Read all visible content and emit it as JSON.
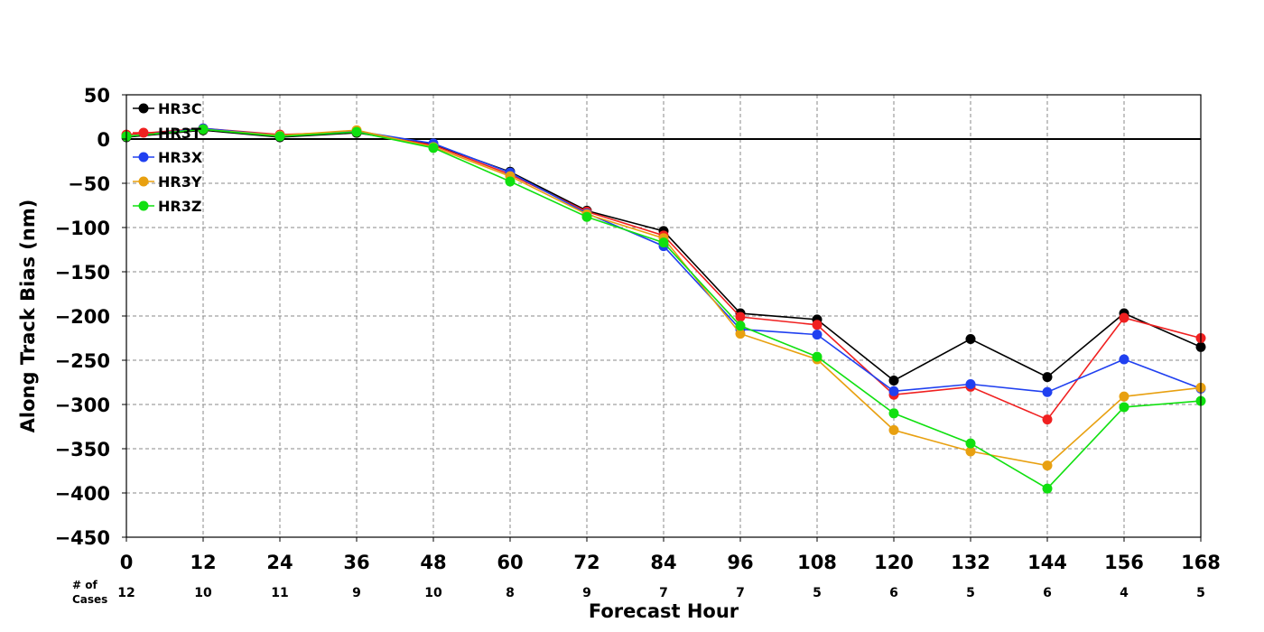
{
  "chart_data": {
    "type": "line",
    "xlabel": "Forecast Hour",
    "ylabel": "Along Track Bias (nm)",
    "x": [
      0,
      12,
      24,
      36,
      48,
      60,
      72,
      84,
      96,
      108,
      120,
      132,
      144,
      156,
      168
    ],
    "xticks": [
      0,
      12,
      24,
      36,
      48,
      60,
      72,
      84,
      96,
      108,
      120,
      132,
      144,
      156,
      168
    ],
    "xlim": [
      0,
      168
    ],
    "ylim": [
      -450,
      50
    ],
    "yticks": [
      50,
      0,
      -50,
      -100,
      -150,
      -200,
      -250,
      -300,
      -350,
      -400,
      -450
    ],
    "grid": true,
    "legend_position": "top-left",
    "cases_label": [
      "# of",
      "Cases"
    ],
    "cases": [
      12,
      10,
      11,
      9,
      10,
      8,
      9,
      7,
      7,
      5,
      6,
      5,
      6,
      4,
      5
    ],
    "series": [
      {
        "name": "HR3C",
        "color": "#000000",
        "values": [
          2,
          10,
          2,
          7,
          -6,
          -37,
          -81,
          -104,
          -197,
          -204,
          -273,
          -226,
          -269,
          -197,
          -235
        ]
      },
      {
        "name": "HR3T",
        "color": "#f02020",
        "values": [
          5,
          12,
          5,
          8,
          -7,
          -40,
          -82,
          -109,
          -201,
          -210,
          -289,
          -280,
          -317,
          -202,
          -225
        ]
      },
      {
        "name": "HR3X",
        "color": "#2040f0",
        "values": [
          3,
          12,
          4,
          9,
          -5,
          -38,
          -84,
          -121,
          -215,
          -221,
          -285,
          -277,
          -286,
          -249,
          -282
        ]
      },
      {
        "name": "HR3Y",
        "color": "#e8a010",
        "values": [
          3,
          11,
          4,
          10,
          -9,
          -42,
          -85,
          -112,
          -220,
          -249,
          -329,
          -353,
          -369,
          -291,
          -281
        ]
      },
      {
        "name": "HR3Z",
        "color": "#10e010",
        "values": [
          3,
          11,
          3,
          8,
          -10,
          -48,
          -88,
          -117,
          -211,
          -246,
          -310,
          -344,
          -395,
          -303,
          -296
        ]
      }
    ]
  }
}
